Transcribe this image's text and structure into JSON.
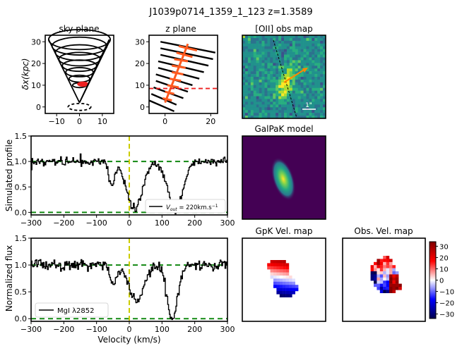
{
  "figure": {
    "title": "J1039p0714_1359_1_123 z=1.3589"
  },
  "chart_data": [
    {
      "id": "sky",
      "type": "scatter",
      "title": "sky plane",
      "xlabel": "",
      "ylabel": "δx(kpc)",
      "xlim": [
        -15,
        15
      ],
      "ylim": [
        -3,
        33
      ],
      "xticks": [
        -10,
        0,
        10
      ],
      "yticks": [
        0,
        10,
        20,
        30
      ],
      "rings": [
        {
          "y": 31,
          "rx": 13.5,
          "ry": 4.6
        },
        {
          "y": 28,
          "rx": 12.0,
          "ry": 4.1
        },
        {
          "y": 25,
          "rx": 10.5,
          "ry": 3.6
        },
        {
          "y": 22,
          "rx": 9.0,
          "ry": 3.1
        },
        {
          "y": 19,
          "rx": 7.5,
          "ry": 2.6
        },
        {
          "y": 16,
          "rx": 6.0,
          "ry": 2.1
        },
        {
          "y": 13,
          "rx": 4.5,
          "ry": 1.6
        },
        {
          "y": 10,
          "rx": 3.0,
          "ry": 1.1
        }
      ],
      "cone_lines": [
        [
          [
            -13.5,
            31
          ],
          [
            0,
            2
          ]
        ],
        [
          [
            13.5,
            31
          ],
          [
            0,
            2
          ]
        ]
      ],
      "sightline": [
        [
          0,
          2
        ],
        [
          13,
          31
        ]
      ],
      "highlight": {
        "x": 1.5,
        "y": 10.5,
        "rx": 2.5,
        "ry": 1.2,
        "color": "#ee2222"
      },
      "disk": {
        "x": 0,
        "y": 0,
        "rx": 5,
        "ry": 1.6
      }
    },
    {
      "id": "zplane",
      "type": "line",
      "title": "z plane",
      "xlim": [
        -7,
        23
      ],
      "ylim": [
        -3,
        33
      ],
      "xticks": [
        0,
        20
      ],
      "yticks": [
        0,
        10,
        20,
        30
      ],
      "black_lines": [
        [
          [
            -7,
            3
          ],
          [
            4,
            -2
          ]
        ],
        [
          [
            -6,
            6
          ],
          [
            5,
            1
          ]
        ],
        [
          [
            -5,
            9
          ],
          [
            8,
            4
          ]
        ],
        [
          [
            -4,
            12
          ],
          [
            10,
            7
          ]
        ],
        [
          [
            -4,
            15
          ],
          [
            12,
            10
          ]
        ],
        [
          [
            -3,
            18
          ],
          [
            15,
            13
          ]
        ],
        [
          [
            -3,
            21
          ],
          [
            17,
            16
          ]
        ],
        [
          [
            -2,
            24
          ],
          [
            19,
            19
          ]
        ],
        [
          [
            -2,
            27
          ],
          [
            21,
            22
          ]
        ],
        [
          [
            -2,
            30
          ],
          [
            22,
            25
          ]
        ]
      ],
      "orange_axis": [
        [
          0,
          2
        ],
        [
          10,
          29
        ]
      ],
      "orange_ticks": [
        [
          [
            -1,
            4
          ],
          [
            3,
            3
          ]
        ],
        [
          [
            0,
            7
          ],
          [
            4,
            6
          ]
        ],
        [
          [
            1,
            10
          ],
          [
            6,
            9
          ]
        ],
        [
          [
            2,
            13
          ],
          [
            7,
            12
          ]
        ],
        [
          [
            3,
            16
          ],
          [
            8,
            15
          ]
        ],
        [
          [
            3,
            19
          ],
          [
            9,
            18
          ]
        ],
        [
          [
            4,
            22
          ],
          [
            10,
            21
          ]
        ],
        [
          [
            5,
            25
          ],
          [
            12,
            23
          ]
        ],
        [
          [
            6,
            28
          ],
          [
            14,
            26
          ]
        ]
      ],
      "orange_color": "#ff5a1f",
      "dashed_y": 8.5,
      "dashed_color": "#ee2222"
    },
    {
      "id": "profile",
      "type": "line",
      "xlim": [
        -300,
        300
      ],
      "ylim": [
        -0.05,
        1.5
      ],
      "xticks": [
        -300,
        -200,
        -100,
        0,
        100,
        200,
        300
      ],
      "yticks": [
        0.0,
        0.5,
        1.0,
        1.5
      ],
      "xlabel": "",
      "ylabel": "Simulated profile",
      "continuum": 1.0,
      "zero": 0.0,
      "vline": 0,
      "noise": 0.04,
      "absorption": [
        {
          "center": 15,
          "depth": 0.95,
          "sigma": 24
        },
        {
          "center": 140,
          "depth": 1.0,
          "sigma": 22
        },
        {
          "center": -55,
          "depth": 0.5,
          "sigma": 8
        }
      ],
      "legend": "V_out = 220km.s⁻¹",
      "legend_label": "V",
      "legend_sub": "out",
      "legend_value": " = 220km.s",
      "legend_sup": "−1"
    },
    {
      "id": "flux",
      "type": "line",
      "xlim": [
        -300,
        300
      ],
      "ylim": [
        -0.05,
        1.5
      ],
      "xticks": [
        -300,
        -200,
        -100,
        0,
        100,
        200,
        300
      ],
      "yticks": [
        0.0,
        0.5,
        1.0,
        1.5
      ],
      "xlabel": "Velocity (km/s)",
      "ylabel": "Normalized flux",
      "continuum": 1.0,
      "zero": 0.0,
      "vline": 0,
      "noise": 0.045,
      "absorption": [
        {
          "center": 20,
          "depth": 0.7,
          "sigma": 22
        },
        {
          "center": 130,
          "depth": 1.0,
          "sigma": 16
        },
        {
          "center": -50,
          "depth": 0.35,
          "sigma": 10
        }
      ],
      "legend": "MgI λ2852"
    }
  ],
  "images": {
    "oii": {
      "title": "[OII] obs map",
      "scalebar": "1\""
    },
    "galpak": {
      "title": "GalPaK model"
    },
    "gpk_vel": {
      "title": "GpK Vel. map"
    },
    "obs_vel": {
      "title": "Obs. Vel. map"
    }
  },
  "colorbar": {
    "ticks": [
      30,
      20,
      10,
      0,
      -10,
      -20,
      -30
    ],
    "range": [
      -34,
      34
    ]
  },
  "colors": {
    "green_dash": "#118811",
    "yellow_dash": "#cccc00",
    "orange_arrow": "#ff8800",
    "viridis_dark": "#440154"
  }
}
